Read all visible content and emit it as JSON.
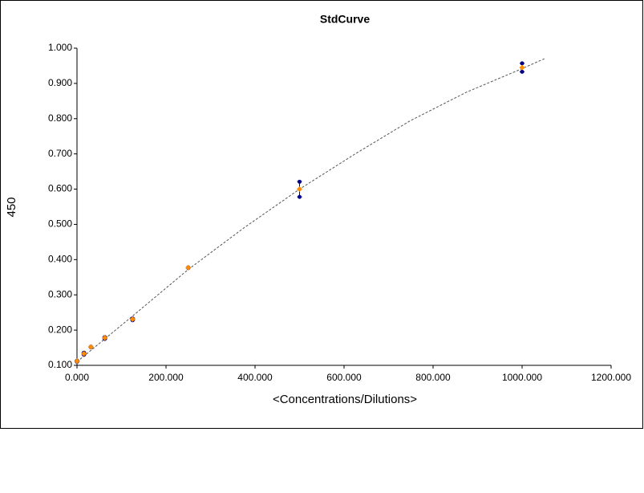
{
  "chart_data": {
    "type": "scatter",
    "title": "StdCurve",
    "x_label": "<Concentrations/Dilutions>",
    "y_label": "450",
    "xlim": [
      0,
      1200
    ],
    "ylim": [
      0.1,
      1.0
    ],
    "xticks": [
      {
        "value": 0,
        "label": "0.000"
      },
      {
        "value": 200,
        "label": "200.000"
      },
      {
        "value": 400,
        "label": "400.000"
      },
      {
        "value": 600,
        "label": "600.000"
      },
      {
        "value": 800,
        "label": "800.000"
      },
      {
        "value": 1000,
        "label": "1000.000"
      },
      {
        "value": 1200,
        "label": "1200.000"
      }
    ],
    "yticks": [
      {
        "value": 0.1,
        "label": "0.100"
      },
      {
        "value": 0.2,
        "label": "0.200"
      },
      {
        "value": 0.3,
        "label": "0.300"
      },
      {
        "value": 0.4,
        "label": "0.400"
      },
      {
        "value": 0.5,
        "label": "0.500"
      },
      {
        "value": 0.6,
        "label": "0.600"
      },
      {
        "value": 0.7,
        "label": "0.700"
      },
      {
        "value": 0.8,
        "label": "0.800"
      },
      {
        "value": 0.9,
        "label": "0.900"
      },
      {
        "value": 1.0,
        "label": "1.000"
      }
    ],
    "replicates": {
      "color": "#00008b",
      "x": [
        0,
        0,
        15.625,
        15.625,
        31.25,
        31.25,
        62.5,
        62.5,
        125,
        125,
        250,
        250,
        500,
        500,
        1000,
        1000
      ],
      "values": [
        0.113,
        0.11,
        0.136,
        0.13,
        0.153,
        0.151,
        0.18,
        0.175,
        0.233,
        0.228,
        0.378,
        0.376,
        0.621,
        0.578,
        0.957,
        0.933
      ]
    },
    "means": {
      "color": "#ff8c00",
      "error_color": "#000080",
      "x": [
        0,
        15.625,
        31.25,
        62.5,
        125,
        250,
        500,
        1000
      ],
      "values": [
        0.112,
        0.133,
        0.152,
        0.178,
        0.231,
        0.377,
        0.6,
        0.945
      ],
      "errors": [
        0.002,
        0.003,
        0.001,
        0.003,
        0.003,
        0.001,
        0.022,
        0.012
      ]
    },
    "fit": {
      "color": "#555555",
      "x": [
        0,
        125,
        250,
        375,
        500,
        625,
        750,
        875,
        1000,
        1050
      ],
      "values": [
        0.11,
        0.24,
        0.372,
        0.49,
        0.6,
        0.7,
        0.795,
        0.875,
        0.942,
        0.97
      ]
    }
  }
}
